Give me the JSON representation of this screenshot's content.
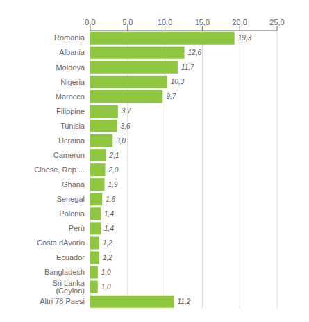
{
  "chart_data": {
    "type": "bar",
    "orientation": "horizontal",
    "categories": [
      "Altri 78 Paesi",
      "Sri Lanka (Ceylon)",
      "Bangladesh",
      "Ecuador",
      "Costa dAvorio",
      "Perù",
      "Polonia",
      "Senegal",
      "Ghana",
      "Cinese, Rep....",
      "Camerun",
      "Ucraina",
      "Tunisia",
      "Filippine",
      "Marocco",
      "Nigeria",
      "Moldova",
      "Albania",
      "Romania"
    ],
    "values": [
      11.2,
      1.0,
      1.0,
      1.2,
      1.2,
      1.4,
      1.4,
      1.6,
      1.9,
      2.0,
      2.1,
      3.0,
      3.6,
      3.7,
      9.7,
      10.3,
      11.7,
      12.6,
      19.3
    ],
    "value_labels": [
      "11,2",
      "1,0",
      "1,0",
      "1,2",
      "1,2",
      "1,4",
      "1,4",
      "1,6",
      "1,9",
      "2,0",
      "2,1",
      "3,0",
      "3,6",
      "3,7",
      "9,7",
      "10,3",
      "11,7",
      "12,6",
      "19,3"
    ],
    "data_labels": true,
    "color": "#8DC63F",
    "xlim": [
      0,
      25
    ],
    "xticks": [
      {
        "value": 0,
        "label": "0,0"
      },
      {
        "value": 5,
        "label": "5,0"
      },
      {
        "value": 10,
        "label": "10,0"
      },
      {
        "value": 15,
        "label": "15,0"
      },
      {
        "value": 20,
        "label": "20,0"
      },
      {
        "value": 25,
        "label": "25,0"
      }
    ],
    "grid": true
  }
}
